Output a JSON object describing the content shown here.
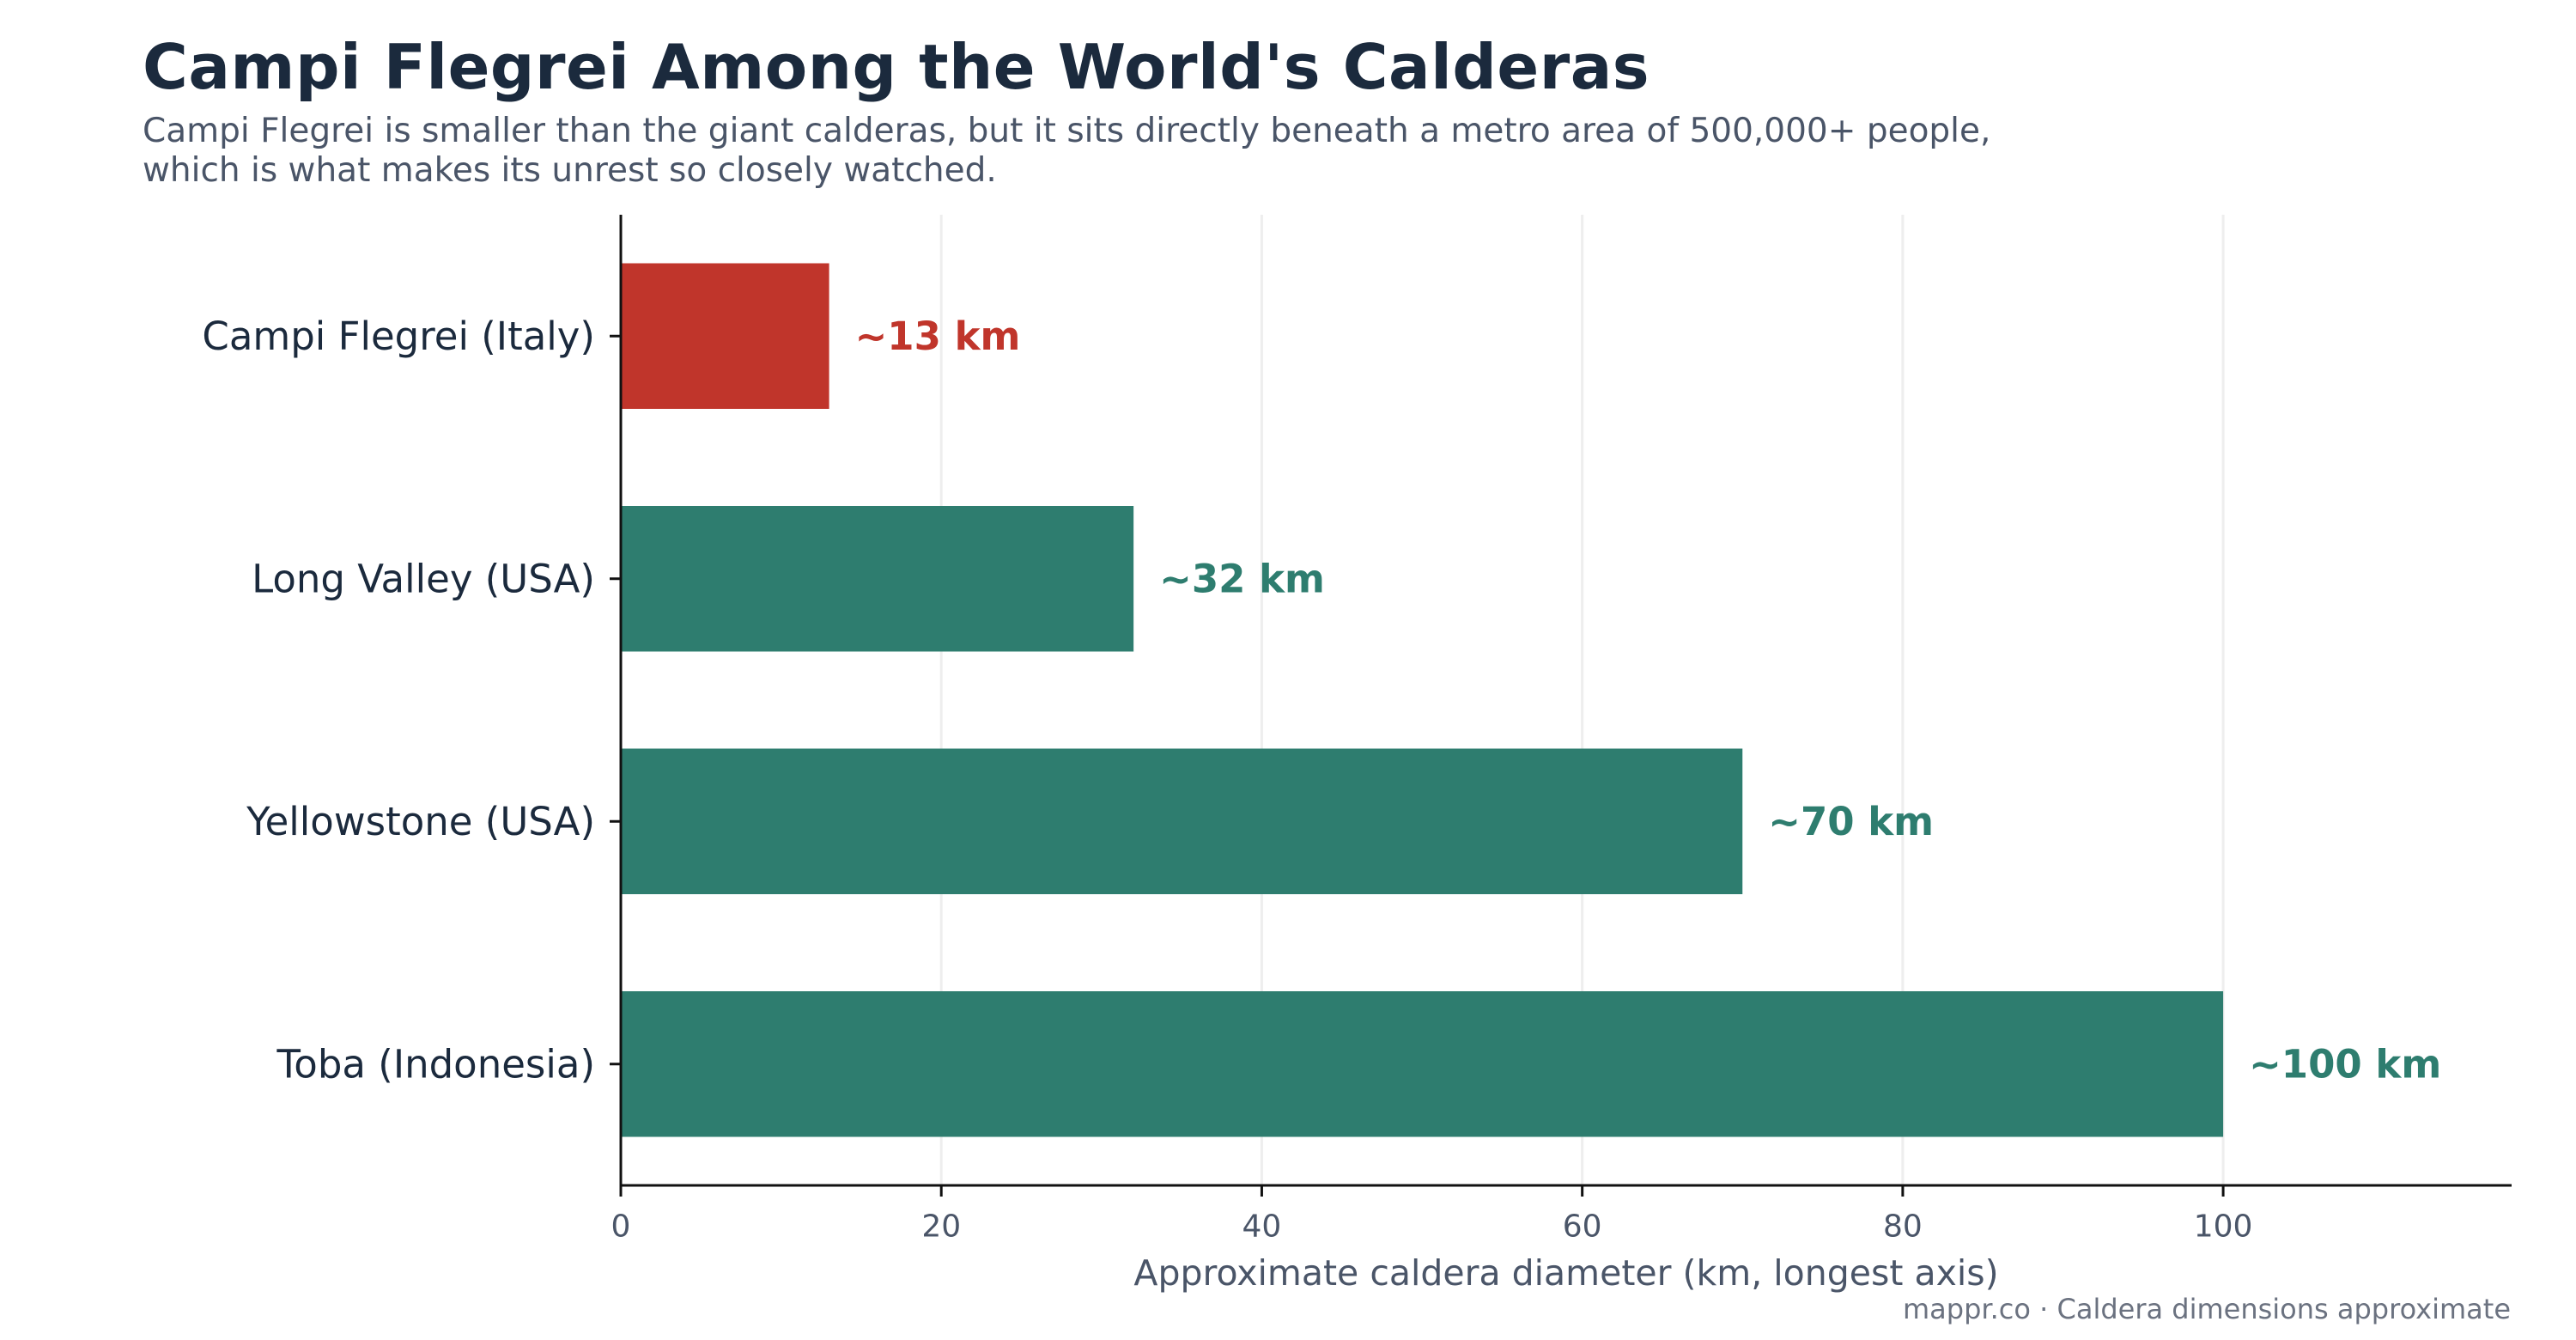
{
  "title": "Campi Flegrei Among the World's Calderas",
  "subtitle_lines": [
    "Campi Flegrei is smaller than the giant calderas, but it sits directly beneath a metro area of 500,000+ people,",
    "which is what makes its unrest so closely watched."
  ],
  "source": "mappr.co · Caldera dimensions approximate",
  "colors": {
    "highlight": "#c0352b",
    "default": "#2e7d6f",
    "grid": "#eeeeee",
    "axis": "#111111"
  },
  "chart_data": {
    "type": "bar",
    "orientation": "horizontal",
    "categories": [
      "Campi Flegrei (Italy)",
      "Long Valley (USA)",
      "Yellowstone (USA)",
      "Toba (Indonesia)"
    ],
    "values": [
      13,
      32,
      70,
      100
    ],
    "value_labels": [
      "~13 km",
      "~32 km",
      "~70 km",
      "~100 km"
    ],
    "highlight": [
      true,
      false,
      false,
      false
    ],
    "xlabel": "Approximate caldera diameter (km, longest axis)",
    "ylabel": "",
    "xlim": [
      0,
      118
    ],
    "xticks": [
      0,
      20,
      40,
      60,
      80,
      100
    ],
    "xtick_labels": [
      "0",
      "20",
      "40",
      "60",
      "80",
      "100"
    ],
    "grid": "vertical"
  }
}
